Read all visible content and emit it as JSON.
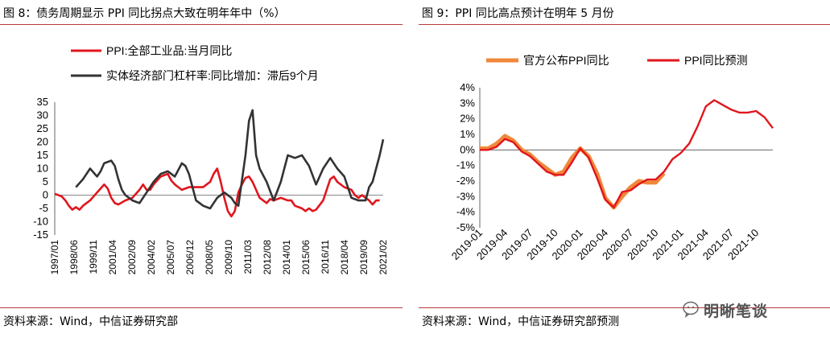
{
  "panel_left": {
    "title": "图 8：债务周期显示 PPI 同比拐点大致在明年年中（%）",
    "source": "资料来源：Wind，中信证券研究部"
  },
  "panel_right": {
    "title": "图 9：PPI 同比高点预计在明年 5 月份",
    "source": "资料来源：Wind，中信证券研究部预测"
  },
  "watermark": {
    "text": "明晰笔谈",
    "icon": "wechat-icon"
  },
  "chart_data": [
    {
      "type": "line",
      "title": "",
      "xlabel": "",
      "ylabel": "",
      "ylim": [
        -15,
        35
      ],
      "yticks": [
        "35",
        "30",
        "25",
        "20",
        "15",
        "10",
        "5",
        "0",
        "-5",
        "-10",
        "-15"
      ],
      "xticks": [
        "1997/01",
        "1998/06",
        "1999/11",
        "2001/04",
        "2002/09",
        "2004/02",
        "2005/07",
        "2006/12",
        "2008/05",
        "2009/10",
        "2011/03",
        "2012/08",
        "2014/01",
        "2015/06",
        "2016/11",
        "2018/04",
        "2019/09",
        "2021/02"
      ],
      "series": [
        {
          "name": "PPI:全部工业品:当月同比",
          "color": "#e0161d",
          "points": [
            [
              0,
              0.5
            ],
            [
              1,
              -0.5
            ],
            [
              1.5,
              -2
            ],
            [
              2,
              -4
            ],
            [
              2.5,
              -5.5
            ],
            [
              3,
              -4.5
            ],
            [
              3.5,
              -5.5
            ],
            [
              4,
              -4
            ],
            [
              5,
              -2
            ],
            [
              6,
              1
            ],
            [
              6.5,
              2.5
            ],
            [
              7,
              4
            ],
            [
              7.5,
              2.5
            ],
            [
              8,
              -1
            ],
            [
              8.5,
              -3
            ],
            [
              9,
              -3.5
            ],
            [
              10,
              -2
            ],
            [
              11,
              -1
            ],
            [
              12,
              2
            ],
            [
              12.5,
              4
            ],
            [
              13,
              2
            ],
            [
              13.5,
              2
            ],
            [
              14,
              4
            ],
            [
              15,
              7
            ],
            [
              16,
              8
            ],
            [
              16.5,
              5.5
            ],
            [
              17,
              4
            ],
            [
              17.5,
              3
            ],
            [
              18,
              2
            ],
            [
              19,
              3
            ],
            [
              20,
              3
            ],
            [
              21,
              3
            ],
            [
              22,
              5
            ],
            [
              22.5,
              8
            ],
            [
              23,
              10
            ],
            [
              23.5,
              5
            ],
            [
              24,
              -1
            ],
            [
              24.5,
              -6
            ],
            [
              25,
              -8
            ],
            [
              25.5,
              -6
            ],
            [
              26,
              1
            ],
            [
              26.5,
              4
            ],
            [
              27,
              6.5
            ],
            [
              27.5,
              7
            ],
            [
              28,
              5
            ],
            [
              28.5,
              2
            ],
            [
              29,
              -1
            ],
            [
              30,
              -3
            ],
            [
              30.5,
              -1.5
            ],
            [
              31,
              -2
            ],
            [
              32,
              -1
            ],
            [
              33,
              -2
            ],
            [
              33.5,
              -2
            ],
            [
              34,
              -4
            ],
            [
              35,
              -5
            ],
            [
              35.5,
              -6
            ],
            [
              36,
              -5
            ],
            [
              36.5,
              -6
            ],
            [
              37,
              -5.5
            ],
            [
              38,
              -2
            ],
            [
              38.5,
              2
            ],
            [
              39,
              6
            ],
            [
              39.5,
              7
            ],
            [
              40,
              5
            ],
            [
              41,
              3
            ],
            [
              42,
              2
            ],
            [
              42.5,
              0
            ],
            [
              43,
              -1
            ],
            [
              43.5,
              0
            ],
            [
              44,
              -1
            ],
            [
              44.5,
              -2
            ],
            [
              45,
              -3.5
            ],
            [
              45.5,
              -2
            ],
            [
              46,
              -2
            ]
          ]
        },
        {
          "name": "实体经济部门杠杆率:同比增加：滞后9个月",
          "color": "#333333",
          "points": [
            [
              3,
              3
            ],
            [
              4,
              6
            ],
            [
              5,
              10
            ],
            [
              6,
              7
            ],
            [
              6.5,
              9
            ],
            [
              7,
              12
            ],
            [
              8,
              13
            ],
            [
              8.5,
              11
            ],
            [
              9,
              6
            ],
            [
              9.5,
              2
            ],
            [
              10,
              0
            ],
            [
              11,
              -2
            ],
            [
              12,
              -3
            ],
            [
              13,
              1
            ],
            [
              14,
              5
            ],
            [
              15,
              8
            ],
            [
              16,
              9
            ],
            [
              17,
              7
            ],
            [
              18,
              12
            ],
            [
              18.5,
              11
            ],
            [
              19,
              8
            ],
            [
              20,
              -2
            ],
            [
              21,
              -4
            ],
            [
              22,
              -5
            ],
            [
              23,
              -1
            ],
            [
              24,
              1
            ],
            [
              25,
              -1
            ],
            [
              25.5,
              -3
            ],
            [
              26,
              -4
            ],
            [
              27,
              15
            ],
            [
              27.5,
              28
            ],
            [
              28,
              32
            ],
            [
              28.5,
              15
            ],
            [
              29,
              10
            ],
            [
              30,
              5
            ],
            [
              31,
              -2
            ],
            [
              32,
              5
            ],
            [
              33,
              15
            ],
            [
              34,
              14
            ],
            [
              35,
              15
            ],
            [
              36,
              11
            ],
            [
              37,
              4
            ],
            [
              38,
              10
            ],
            [
              39,
              14
            ],
            [
              40,
              10
            ],
            [
              41,
              7
            ],
            [
              41.5,
              3
            ],
            [
              42,
              -1
            ],
            [
              43,
              -2
            ],
            [
              44,
              -2
            ],
            [
              44.5,
              3
            ],
            [
              45,
              5
            ],
            [
              46,
              15
            ],
            [
              46.5,
              21
            ]
          ]
        }
      ],
      "legend": "top-left"
    },
    {
      "type": "line",
      "title": "",
      "xlabel": "",
      "ylabel": "",
      "ylim": [
        -5,
        4
      ],
      "yticks": [
        "4%",
        "3%",
        "2%",
        "1%",
        "0%",
        "-1%",
        "-2%",
        "-3%",
        "-4%",
        "-5%"
      ],
      "xticks": [
        "2019-01",
        "2019-04",
        "2019-07",
        "2019-10",
        "2020-01",
        "2020-04",
        "2020-07",
        "2020-10",
        "2021-01",
        "2021-04",
        "2021-07",
        "2021-10"
      ],
      "series": [
        {
          "name": "官方公布PPI同比",
          "color": "#f0883a",
          "values": [
            0.1,
            0.1,
            0.4,
            0.9,
            0.6,
            0.0,
            -0.3,
            -0.8,
            -1.2,
            -1.6,
            -1.4,
            -0.5,
            0.1,
            -0.4,
            -1.5,
            -3.1,
            -3.7,
            -3.0,
            -2.4,
            -2.0,
            -2.1,
            -2.1,
            -1.5
          ]
        },
        {
          "name": "PPI同比预测",
          "color": "#e0161d",
          "values": [
            0.0,
            0.0,
            0.2,
            0.7,
            0.5,
            -0.1,
            -0.4,
            -0.9,
            -1.4,
            -1.6,
            -1.6,
            -0.8,
            0.1,
            -0.5,
            -1.8,
            -3.2,
            -3.7,
            -2.7,
            -2.6,
            -2.2,
            -1.9,
            -1.9,
            -1.4,
            -0.6,
            -0.2,
            0.4,
            1.5,
            2.8,
            3.2,
            2.9,
            2.6,
            2.4,
            2.4,
            2.5,
            2.1,
            1.4
          ]
        }
      ],
      "legend": "top"
    }
  ]
}
